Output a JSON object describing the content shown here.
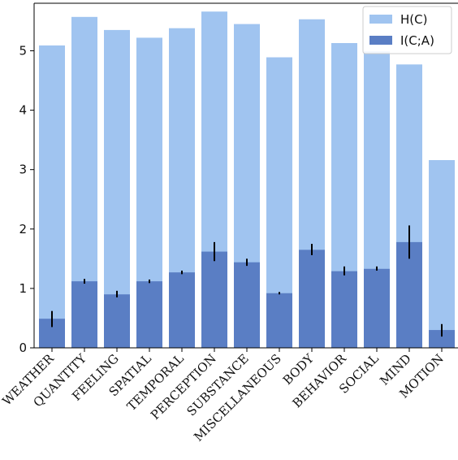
{
  "chart_data": {
    "type": "bar",
    "title": "",
    "xlabel": "",
    "ylabel": "",
    "ylim": [
      0,
      5.8
    ],
    "yticks": [
      0,
      1,
      2,
      3,
      4,
      5
    ],
    "grid": false,
    "legend_position": "top-right",
    "bar_mode": "overlay",
    "categories": [
      "WEATHER",
      "QUANTITY",
      "FEELING",
      "SPATIAL",
      "TEMPORAL",
      "PERCEPTION",
      "SUBSTANCE",
      "MISCELLANEOUS",
      "BODY",
      "BEHAVIOR",
      "SOCIAL",
      "MIND",
      "MOTION"
    ],
    "series": [
      {
        "name": "H(C)",
        "color": "#a0c4f0",
        "values": [
          5.09,
          5.57,
          5.35,
          5.22,
          5.38,
          5.66,
          5.45,
          4.89,
          5.53,
          5.13,
          4.99,
          4.77,
          3.16
        ]
      },
      {
        "name": "I(C;A)",
        "color": "#5a7ec4",
        "values": [
          0.49,
          1.12,
          0.9,
          1.12,
          1.27,
          1.62,
          1.44,
          0.92,
          1.65,
          1.29,
          1.33,
          1.78,
          0.3
        ],
        "error_low": [
          0.35,
          1.08,
          0.85,
          1.09,
          1.24,
          1.46,
          1.38,
          0.9,
          1.56,
          1.22,
          1.3,
          1.5,
          0.19
        ],
        "error_high": [
          0.62,
          1.16,
          0.96,
          1.15,
          1.3,
          1.78,
          1.5,
          0.94,
          1.75,
          1.37,
          1.37,
          2.06,
          0.4
        ]
      }
    ]
  }
}
